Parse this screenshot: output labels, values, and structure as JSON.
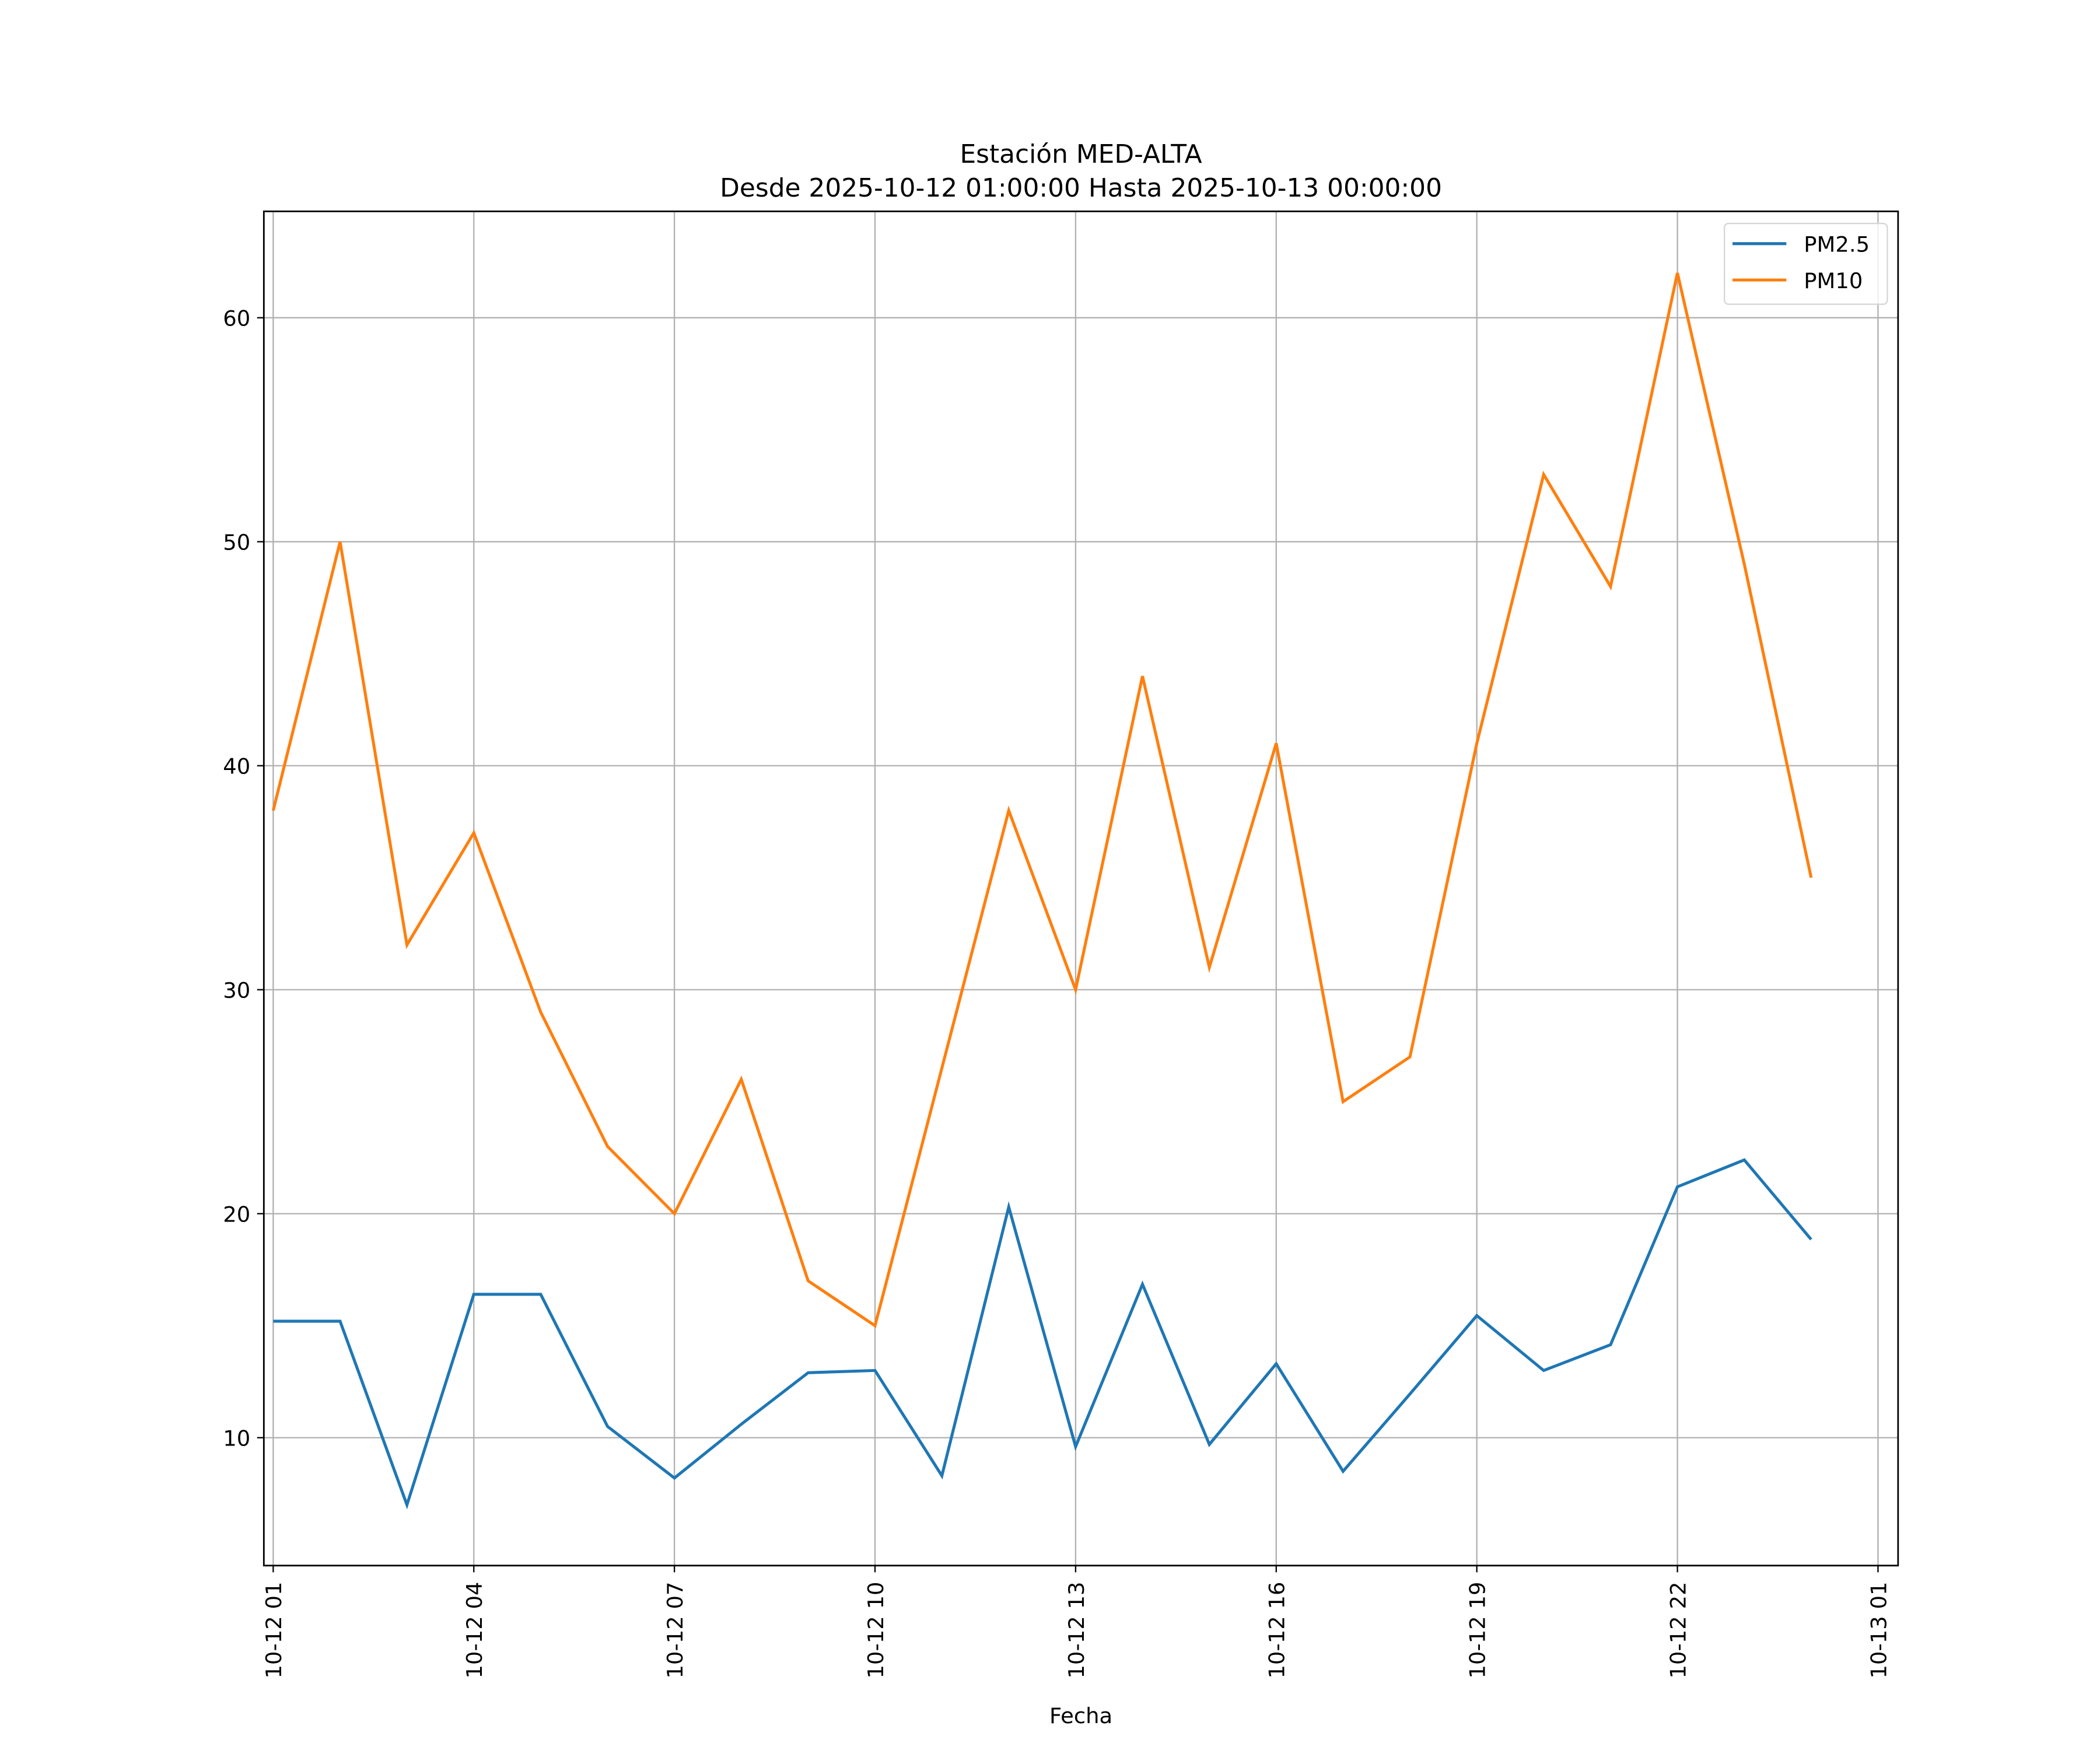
{
  "chart_data": {
    "type": "line",
    "title": "Estación MED-ALTA",
    "subtitle": "Desde 2025-10-12 01:00:00 Hasta 2025-10-13 00:00:00",
    "xlabel": "Fecha",
    "ylabel": "",
    "x_hours": [
      1,
      2,
      3,
      4,
      5,
      6,
      7,
      8,
      9,
      10,
      11,
      12,
      13,
      14,
      15,
      16,
      17,
      18,
      19,
      20,
      21,
      22,
      23,
      24
    ],
    "xlim_hours": [
      0.86,
      25.3
    ],
    "ylim": [
      4.29,
      64.75
    ],
    "grid": true,
    "legend_position": "top-right",
    "x_ticks": [
      {
        "hour": 1,
        "label": "10-12 01"
      },
      {
        "hour": 4,
        "label": "10-12 04"
      },
      {
        "hour": 7,
        "label": "10-12 07"
      },
      {
        "hour": 10,
        "label": "10-12 10"
      },
      {
        "hour": 13,
        "label": "10-12 13"
      },
      {
        "hour": 16,
        "label": "10-12 16"
      },
      {
        "hour": 19,
        "label": "10-12 19"
      },
      {
        "hour": 22,
        "label": "10-12 22"
      },
      {
        "hour": 25,
        "label": "10-13 01"
      }
    ],
    "y_ticks": [
      10,
      20,
      30,
      40,
      50,
      60
    ],
    "series": [
      {
        "name": "PM2.5",
        "color": "#1f77b4",
        "values": [
          15.2,
          15.2,
          7.0,
          16.4,
          16.4,
          10.5,
          8.2,
          10.6,
          12.9,
          13.0,
          8.3,
          20.3,
          9.6,
          16.85,
          9.7,
          13.3,
          8.5,
          11.95,
          15.45,
          13.0,
          14.15,
          21.2,
          22.4,
          18.85
        ]
      },
      {
        "name": "PM10",
        "color": "#ff7f0e",
        "values": [
          38,
          50,
          32,
          37,
          29,
          23,
          20,
          26,
          17,
          15,
          26.5,
          38,
          30,
          44,
          31,
          41,
          25,
          27,
          41,
          53,
          48,
          62,
          49,
          35
        ]
      }
    ]
  }
}
